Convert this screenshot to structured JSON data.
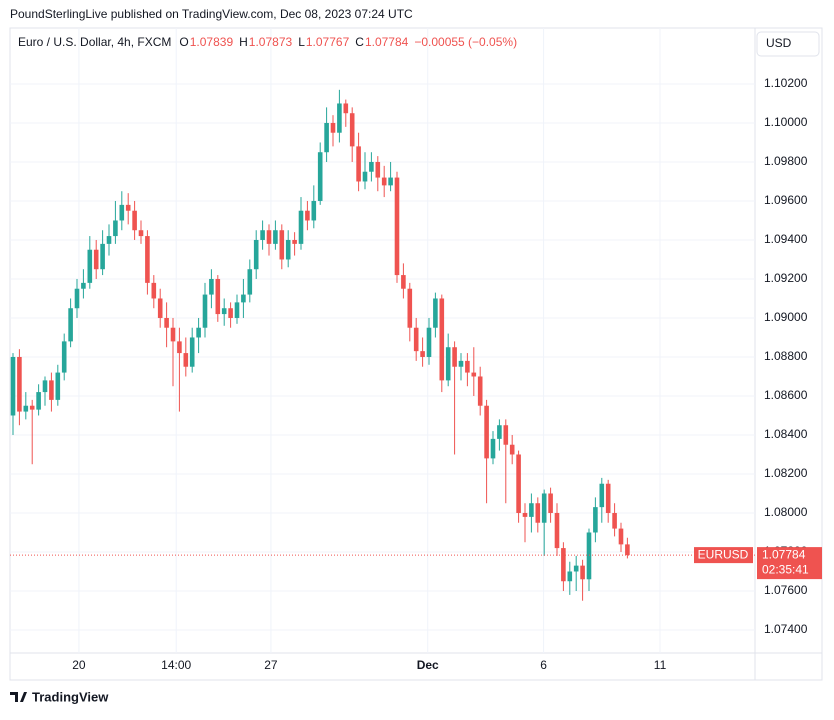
{
  "chart_data": {
    "type": "candlestick",
    "attribution": "PoundSterlingLive published on TradingView.com, Dec 08, 2023 07:24 UTC",
    "symbol": "Euro / U.S. Dollar, 4h, FXCM",
    "ohlc": [
      {
        "label": "O",
        "value": 1.07839
      },
      {
        "label": "H",
        "value": 1.07873
      },
      {
        "label": "L",
        "value": 1.07767
      },
      {
        "label": "C",
        "value": 1.07784
      }
    ],
    "change": "−0.00055 (−0.05%)",
    "currency": "USD",
    "footer": "TradingView",
    "up_color": "#26a69a",
    "down_color": "#ef5350",
    "price_label": {
      "name": "EURUSD",
      "value": 1.07784,
      "countdown": "02:35:41"
    },
    "ylim": [
      1.07282,
      1.10487
    ],
    "yticks": [
      {
        "value": 1.074,
        "label": "1.07400"
      },
      {
        "value": 1.076,
        "label": "1.07600"
      },
      {
        "value": 1.078,
        "label": "1.07800"
      },
      {
        "value": 1.08,
        "label": "1.08000"
      },
      {
        "value": 1.082,
        "label": "1.08200"
      },
      {
        "value": 1.084,
        "label": "1.08400"
      },
      {
        "value": 1.086,
        "label": "1.08600"
      },
      {
        "value": 1.088,
        "label": "1.08800"
      },
      {
        "value": 1.09,
        "label": "1.09000"
      },
      {
        "value": 1.092,
        "label": "1.09200"
      },
      {
        "value": 1.094,
        "label": "1.09400"
      },
      {
        "value": 1.096,
        "label": "1.09600"
      },
      {
        "value": 1.098,
        "label": "1.09800"
      },
      {
        "value": 1.1,
        "label": "1.10000"
      },
      {
        "value": 1.102,
        "label": "1.10200"
      }
    ],
    "xlim": [
      -0.47,
      115.94
    ],
    "xticks": [
      {
        "value": 10.3,
        "label": "20"
      },
      {
        "value": 25.5,
        "label": "14:00"
      },
      {
        "value": 40.3,
        "label": "27"
      },
      {
        "value": 64.8,
        "label": "Dec"
      },
      {
        "value": 82.9,
        "label": "6"
      },
      {
        "value": 101.1,
        "label": "11"
      }
    ],
    "grid": true,
    "candles": [
      [
        1.085,
        1.0882,
        1.084,
        1.088
      ],
      [
        1.088,
        1.0884,
        1.0845,
        1.0852
      ],
      [
        1.0852,
        1.0862,
        1.0848,
        1.0855
      ],
      [
        1.0855,
        1.0858,
        1.0825,
        1.0853
      ],
      [
        1.0853,
        1.0866,
        1.085,
        1.0862
      ],
      [
        1.0862,
        1.087,
        1.0855,
        1.0868
      ],
      [
        1.0868,
        1.0872,
        1.0852,
        1.0858
      ],
      [
        1.0858,
        1.0876,
        1.0855,
        1.0872
      ],
      [
        1.0872,
        1.0892,
        1.0868,
        1.0888
      ],
      [
        1.0888,
        1.091,
        1.0885,
        1.0905
      ],
      [
        1.0905,
        1.092,
        1.09,
        1.0915
      ],
      [
        1.0915,
        1.0925,
        1.091,
        1.0918
      ],
      [
        1.0918,
        1.0942,
        1.0915,
        1.0935
      ],
      [
        1.0935,
        1.094,
        1.092,
        1.0925
      ],
      [
        1.0925,
        1.0945,
        1.0922,
        1.0938
      ],
      [
        1.0938,
        1.0948,
        1.0932,
        1.0942
      ],
      [
        1.0942,
        1.096,
        1.0938,
        1.095
      ],
      [
        1.095,
        1.0965,
        1.0945,
        1.0958
      ],
      [
        1.0958,
        1.0964,
        1.0948,
        1.0955
      ],
      [
        1.0955,
        1.096,
        1.094,
        1.0945
      ],
      [
        1.0945,
        1.095,
        1.0938,
        1.0942
      ],
      [
        1.0942,
        1.0945,
        1.0912,
        1.0918
      ],
      [
        1.0918,
        1.0922,
        1.0905,
        1.091
      ],
      [
        1.091,
        1.0915,
        1.0895,
        1.09
      ],
      [
        1.09,
        1.0908,
        1.0885,
        1.0895
      ],
      [
        1.0895,
        1.09,
        1.0865,
        1.0888
      ],
      [
        1.0888,
        1.0895,
        1.0852,
        1.0882
      ],
      [
        1.0882,
        1.089,
        1.087,
        1.0875
      ],
      [
        1.0875,
        1.0895,
        1.0872,
        1.089
      ],
      [
        1.089,
        1.09,
        1.0882,
        1.0895
      ],
      [
        1.0895,
        1.0918,
        1.089,
        1.0912
      ],
      [
        1.0912,
        1.0925,
        1.0905,
        1.092
      ],
      [
        1.092,
        1.0922,
        1.0898,
        1.0902
      ],
      [
        1.0902,
        1.091,
        1.0896,
        1.0905
      ],
      [
        1.0905,
        1.0908,
        1.0895,
        1.09
      ],
      [
        1.09,
        1.0912,
        1.0897,
        1.0908
      ],
      [
        1.0908,
        1.092,
        1.09,
        1.0912
      ],
      [
        1.0912,
        1.093,
        1.0908,
        1.0925
      ],
      [
        1.0925,
        1.0945,
        1.092,
        1.094
      ],
      [
        1.094,
        1.095,
        1.0935,
        1.0945
      ],
      [
        1.0945,
        1.0948,
        1.0932,
        1.0938
      ],
      [
        1.0938,
        1.095,
        1.0935,
        1.0945
      ],
      [
        1.0945,
        1.0948,
        1.0925,
        1.093
      ],
      [
        1.093,
        1.0945,
        1.0926,
        1.094
      ],
      [
        1.094,
        1.0944,
        1.0932,
        1.0938
      ],
      [
        1.0938,
        1.0962,
        1.0935,
        1.0955
      ],
      [
        1.0955,
        1.096,
        1.0945,
        1.095
      ],
      [
        1.095,
        1.0968,
        1.0946,
        1.096
      ],
      [
        1.096,
        1.099,
        1.0958,
        1.0985
      ],
      [
        1.0985,
        1.1008,
        1.098,
        1.1
      ],
      [
        1.1,
        1.1004,
        1.0988,
        1.0995
      ],
      [
        1.0995,
        1.1017,
        1.099,
        1.101
      ],
      [
        1.101,
        1.1012,
        1.0998,
        1.1005
      ],
      [
        1.1005,
        1.1008,
        1.098,
        1.0988
      ],
      [
        1.0988,
        1.0995,
        1.0965,
        1.097
      ],
      [
        1.097,
        1.0985,
        1.0966,
        1.0975
      ],
      [
        1.0975,
        1.0985,
        1.097,
        1.098
      ],
      [
        1.098,
        1.0983,
        1.0965,
        1.0972
      ],
      [
        1.0972,
        1.0978,
        1.0962,
        1.0968
      ],
      [
        1.0968,
        1.098,
        1.0965,
        1.0972
      ],
      [
        1.0972,
        1.0975,
        1.0918,
        1.0922
      ],
      [
        1.0922,
        1.0928,
        1.091,
        1.0915
      ],
      [
        1.0915,
        1.0918,
        1.0888,
        1.0895
      ],
      [
        1.0895,
        1.09,
        1.0878,
        1.0883
      ],
      [
        1.0883,
        1.089,
        1.0875,
        1.088
      ],
      [
        1.088,
        1.09,
        1.0876,
        1.0895
      ],
      [
        1.0895,
        1.0913,
        1.089,
        1.091
      ],
      [
        1.091,
        1.0912,
        1.0862,
        1.0868
      ],
      [
        1.0868,
        1.0892,
        1.0865,
        1.0885
      ],
      [
        1.0885,
        1.0888,
        1.083,
        1.0875
      ],
      [
        1.0875,
        1.0882,
        1.0868,
        1.0878
      ],
      [
        1.0878,
        1.0882,
        1.0865,
        1.0872
      ],
      [
        1.0872,
        1.0885,
        1.086,
        1.087
      ],
      [
        1.087,
        1.0875,
        1.085,
        1.0855
      ],
      [
        1.0855,
        1.0858,
        1.0805,
        1.0828
      ],
      [
        1.0828,
        1.0842,
        1.0825,
        1.0838
      ],
      [
        1.0838,
        1.0848,
        1.0832,
        1.0845
      ],
      [
        1.0845,
        1.0848,
        1.0805,
        1.0835
      ],
      [
        1.0835,
        1.084,
        1.0825,
        1.083
      ],
      [
        1.083,
        1.0832,
        1.0795,
        1.08
      ],
      [
        1.08,
        1.0805,
        1.0785,
        1.0798
      ],
      [
        1.0798,
        1.081,
        1.079,
        1.0805
      ],
      [
        1.0805,
        1.0808,
        1.079,
        1.0795
      ],
      [
        1.0795,
        1.0812,
        1.0778,
        1.081
      ],
      [
        1.081,
        1.0813,
        1.0795,
        1.08
      ],
      [
        1.08,
        1.0805,
        1.0778,
        1.0782
      ],
      [
        1.0782,
        1.0785,
        1.076,
        1.0765
      ],
      [
        1.0765,
        1.0775,
        1.0758,
        1.077
      ],
      [
        1.077,
        1.0778,
        1.076,
        1.0773
      ],
      [
        1.0773,
        1.0776,
        1.0755,
        1.0766
      ],
      [
        1.0766,
        1.0792,
        1.076,
        1.079
      ],
      [
        1.079,
        1.0808,
        1.0785,
        1.0803
      ],
      [
        1.0803,
        1.0818,
        1.0795,
        1.0815
      ],
      [
        1.0815,
        1.0817,
        1.0795,
        1.08
      ],
      [
        1.08,
        1.0805,
        1.0788,
        1.0792
      ],
      [
        1.0792,
        1.0795,
        1.078,
        1.07839
      ],
      [
        1.07839,
        1.07873,
        1.07767,
        1.07784
      ]
    ]
  }
}
